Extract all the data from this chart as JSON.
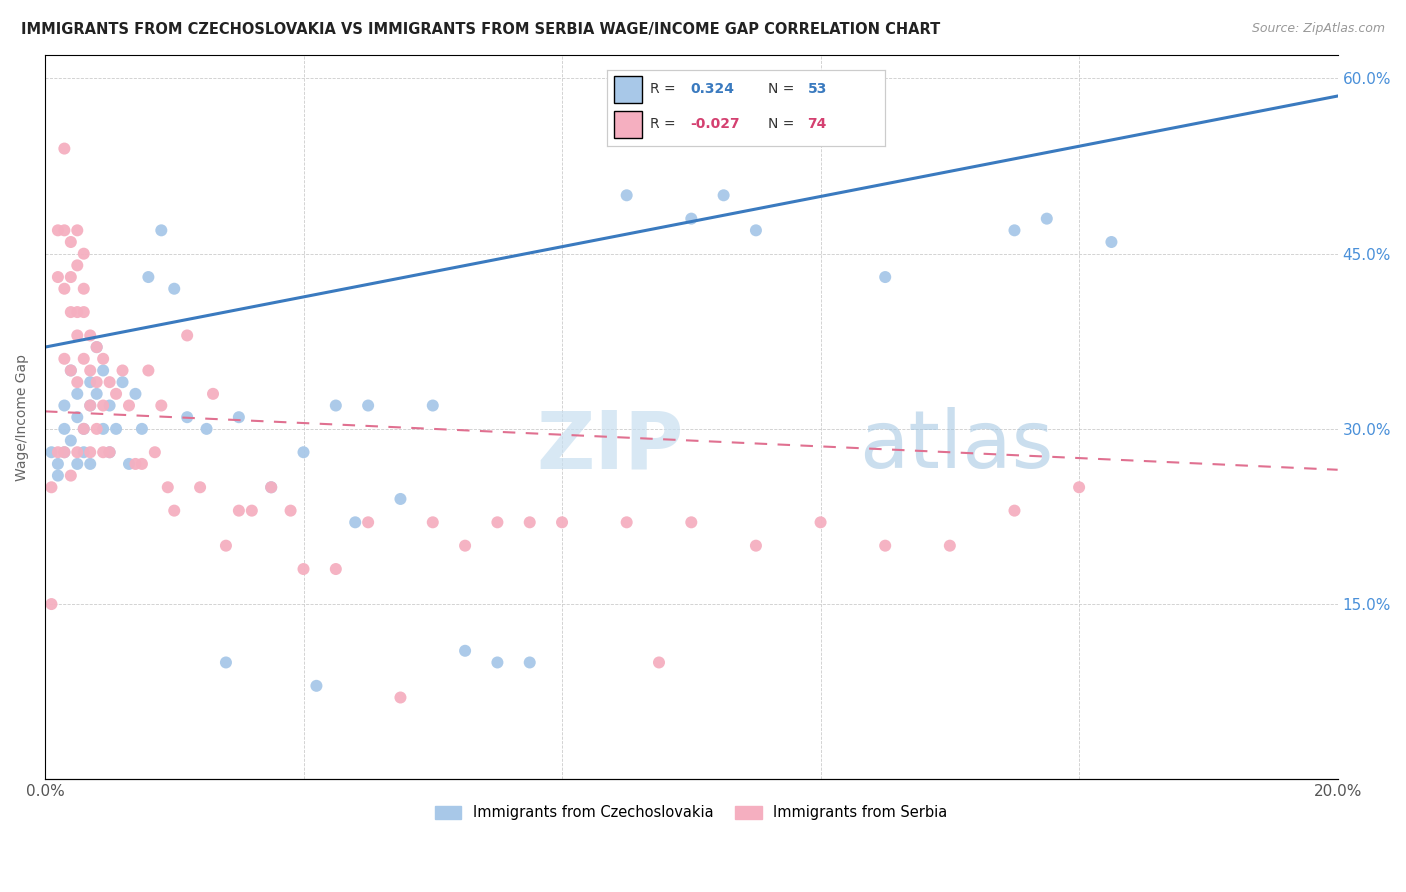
{
  "title": "IMMIGRANTS FROM CZECHOSLOVAKIA VS IMMIGRANTS FROM SERBIA WAGE/INCOME GAP CORRELATION CHART",
  "source": "Source: ZipAtlas.com",
  "ylabel": "Wage/Income Gap",
  "x_min": 0.0,
  "x_max": 0.2,
  "y_min": 0.0,
  "y_max": 0.62,
  "x_ticks": [
    0.0,
    0.04,
    0.08,
    0.12,
    0.16,
    0.2
  ],
  "y_ticks": [
    0.0,
    0.15,
    0.3,
    0.45,
    0.6
  ],
  "y_tick_labels": [
    "",
    "15.0%",
    "30.0%",
    "45.0%",
    "60.0%"
  ],
  "legend1_R": "0.324",
  "legend1_N": "53",
  "legend2_R": "-0.027",
  "legend2_N": "74",
  "color_czech": "#a8c8e8",
  "color_serbia": "#f5afc0",
  "line_color_czech": "#3a7abf",
  "line_color_serbia": "#e07090",
  "watermark": "ZIPatlas",
  "watermark_color": "#daeaf8",
  "czech_line_x0": 0.0,
  "czech_line_y0": 0.37,
  "czech_line_x1": 0.2,
  "czech_line_y1": 0.585,
  "serbia_line_x0": 0.0,
  "serbia_line_y0": 0.315,
  "serbia_line_x1": 0.2,
  "serbia_line_y1": 0.265,
  "czech_x": [
    0.001,
    0.002,
    0.002,
    0.003,
    0.003,
    0.003,
    0.004,
    0.004,
    0.005,
    0.005,
    0.005,
    0.006,
    0.006,
    0.007,
    0.007,
    0.007,
    0.008,
    0.008,
    0.009,
    0.009,
    0.01,
    0.01,
    0.011,
    0.012,
    0.013,
    0.014,
    0.015,
    0.016,
    0.018,
    0.02,
    0.022,
    0.025,
    0.028,
    0.03,
    0.035,
    0.04,
    0.042,
    0.045,
    0.048,
    0.05,
    0.055,
    0.06,
    0.065,
    0.07,
    0.075,
    0.09,
    0.1,
    0.105,
    0.11,
    0.13,
    0.15,
    0.155,
    0.165
  ],
  "czech_y": [
    0.28,
    0.27,
    0.26,
    0.3,
    0.28,
    0.32,
    0.29,
    0.35,
    0.27,
    0.31,
    0.33,
    0.28,
    0.3,
    0.27,
    0.34,
    0.32,
    0.37,
    0.33,
    0.35,
    0.3,
    0.32,
    0.28,
    0.3,
    0.34,
    0.27,
    0.33,
    0.3,
    0.43,
    0.47,
    0.42,
    0.31,
    0.3,
    0.1,
    0.31,
    0.25,
    0.28,
    0.08,
    0.32,
    0.22,
    0.32,
    0.24,
    0.32,
    0.11,
    0.1,
    0.1,
    0.5,
    0.48,
    0.5,
    0.47,
    0.43,
    0.47,
    0.48,
    0.46
  ],
  "serbia_x": [
    0.001,
    0.001,
    0.002,
    0.002,
    0.002,
    0.003,
    0.003,
    0.003,
    0.003,
    0.003,
    0.004,
    0.004,
    0.004,
    0.004,
    0.004,
    0.005,
    0.005,
    0.005,
    0.005,
    0.005,
    0.005,
    0.006,
    0.006,
    0.006,
    0.006,
    0.006,
    0.007,
    0.007,
    0.007,
    0.007,
    0.008,
    0.008,
    0.008,
    0.009,
    0.009,
    0.009,
    0.01,
    0.01,
    0.011,
    0.012,
    0.013,
    0.014,
    0.015,
    0.016,
    0.017,
    0.018,
    0.019,
    0.02,
    0.022,
    0.024,
    0.026,
    0.028,
    0.03,
    0.032,
    0.035,
    0.038,
    0.04,
    0.045,
    0.05,
    0.055,
    0.06,
    0.065,
    0.07,
    0.075,
    0.08,
    0.09,
    0.095,
    0.1,
    0.11,
    0.12,
    0.13,
    0.14,
    0.15,
    0.16
  ],
  "serbia_y": [
    0.25,
    0.15,
    0.47,
    0.43,
    0.28,
    0.54,
    0.47,
    0.42,
    0.36,
    0.28,
    0.46,
    0.43,
    0.4,
    0.35,
    0.26,
    0.47,
    0.44,
    0.4,
    0.38,
    0.34,
    0.28,
    0.45,
    0.42,
    0.4,
    0.36,
    0.3,
    0.38,
    0.35,
    0.32,
    0.28,
    0.37,
    0.34,
    0.3,
    0.36,
    0.32,
    0.28,
    0.34,
    0.28,
    0.33,
    0.35,
    0.32,
    0.27,
    0.27,
    0.35,
    0.28,
    0.32,
    0.25,
    0.23,
    0.38,
    0.25,
    0.33,
    0.2,
    0.23,
    0.23,
    0.25,
    0.23,
    0.18,
    0.18,
    0.22,
    0.07,
    0.22,
    0.2,
    0.22,
    0.22,
    0.22,
    0.22,
    0.1,
    0.22,
    0.2,
    0.22,
    0.2,
    0.2,
    0.23,
    0.25
  ]
}
